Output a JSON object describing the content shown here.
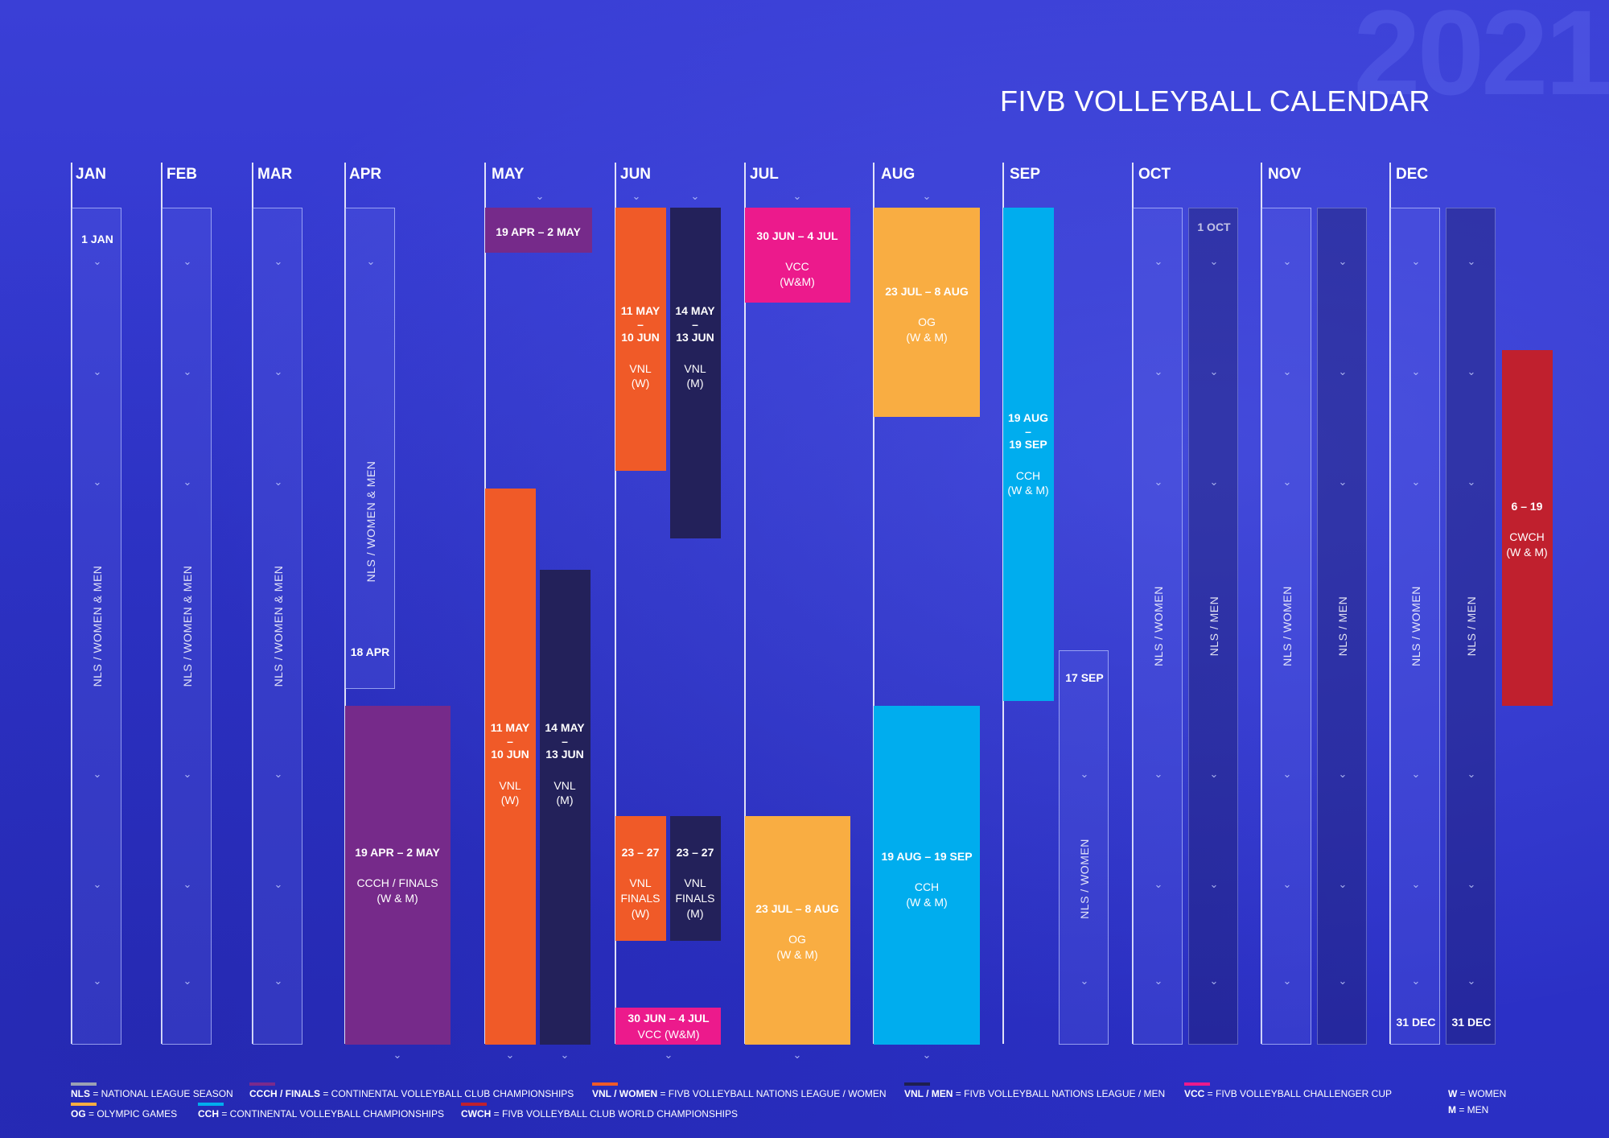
{
  "year": "2021",
  "title": "FIVB VOLLEYBALL CALENDAR",
  "months": [
    "JAN",
    "FEB",
    "MAR",
    "APR",
    "MAY",
    "JUN",
    "JUL",
    "AUG",
    "SEP",
    "OCT",
    "NOV",
    "DEC"
  ],
  "nls_labels": {
    "women_men": "NLS / WOMEN & MEN",
    "women": "NLS / WOMEN",
    "men": "NLS / MEN"
  },
  "dates": {
    "jan1": "1 JAN",
    "apr18": "18 APR",
    "sep17": "17 SEP",
    "oct1": "1 OCT",
    "dec31a": "31 DEC",
    "dec31b": "31 DEC"
  },
  "events": {
    "ccch_top": "19 APR – 2 MAY",
    "ccch_main_date": "19 APR – 2 MAY",
    "ccch_main_label": "CCCH / FINALS",
    "ccch_main_sub": "(W & M)",
    "vnl_w_date1": "11 MAY",
    "vnl_dash": "–",
    "vnl_w_date2": "10 JUN",
    "vnl_w_label": "VNL",
    "vnl_w_sub": "(W)",
    "vnl_m_date1": "14 MAY",
    "vnl_m_date2": "13 JUN",
    "vnl_m_label": "VNL",
    "vnl_m_sub": "(M)",
    "vnlf_w_date": "23 – 27",
    "vnlf_w_label": "VNL",
    "vnlf_w_label2": "FINALS",
    "vnlf_w_sub": "(W)",
    "vnlf_m_date": "23 – 27",
    "vnlf_m_label": "VNL",
    "vnlf_m_label2": "FINALS",
    "vnlf_m_sub": "(M)",
    "vcc_jun_date": "30 JUN – 4 JUL",
    "vcc_jun_label": "VCC (W&M)",
    "vcc_jul_date": "30 JUN – 4 JUL",
    "vcc_jul_label": "VCC",
    "vcc_jul_sub": "(W&M)",
    "og_date": "23 JUL – 8 AUG",
    "og_label": "OG",
    "og_sub": "(W & M)",
    "cch_date": "19 AUG – 19 SEP",
    "cch_label": "CCH",
    "cch_sub": "(W & M)",
    "cch_sep_date1": "19 AUG",
    "cch_sep_date2": "19 SEP",
    "cwch_date": "6 – 19",
    "cwch_label": "CWCH",
    "cwch_sub": "(W & M)"
  },
  "legend": [
    {
      "abbr": "NLS",
      "text": " = NATIONAL LEAGUE SEASON",
      "color": "#9aa0b4"
    },
    {
      "abbr": "CCCH / FINALS",
      "text": " = CONTINENTAL VOLLEYBALL CLUB CHAMPIONSHIPS",
      "color": "#7b2a8c"
    },
    {
      "abbr": "VNL / WOMEN",
      "text": " = FIVB VOLLEYBALL NATIONS LEAGUE / WOMEN",
      "color": "#f05a28"
    },
    {
      "abbr": "VNL / MEN",
      "text": " = FIVB VOLLEYBALL NATIONS LEAGUE / MEN",
      "color": "#1e1f4f"
    },
    {
      "abbr": "VCC",
      "text": " = FIVB VOLLEYBALL CHALLENGER CUP",
      "color": "#ec1a8c"
    },
    {
      "abbr": "OG",
      "text": " = OLYMPIC GAMES",
      "color": "#f9ad42"
    },
    {
      "abbr": "CCH",
      "text": " = CONTINENTAL VOLLEYBALL CHAMPIONSHIPS",
      "color": "#00adee"
    },
    {
      "abbr": "CWCH",
      "text": " = FIVB VOLLEYBALL CLUB WORLD CHAMPIONSHIPS",
      "color": "#c0202e"
    }
  ],
  "gender_legend": [
    {
      "abbr": "W",
      "text": " = WOMEN"
    },
    {
      "abbr": "M",
      "text": " = MEN"
    }
  ],
  "colors": {
    "purple": "#762a8a",
    "orange": "#f05a28",
    "navy": "#23215a",
    "pink": "#ec1a8c",
    "yellow": "#f9ad42",
    "cyan": "#00adee",
    "red": "#c0202e"
  },
  "chevron_glyph": "⌄"
}
